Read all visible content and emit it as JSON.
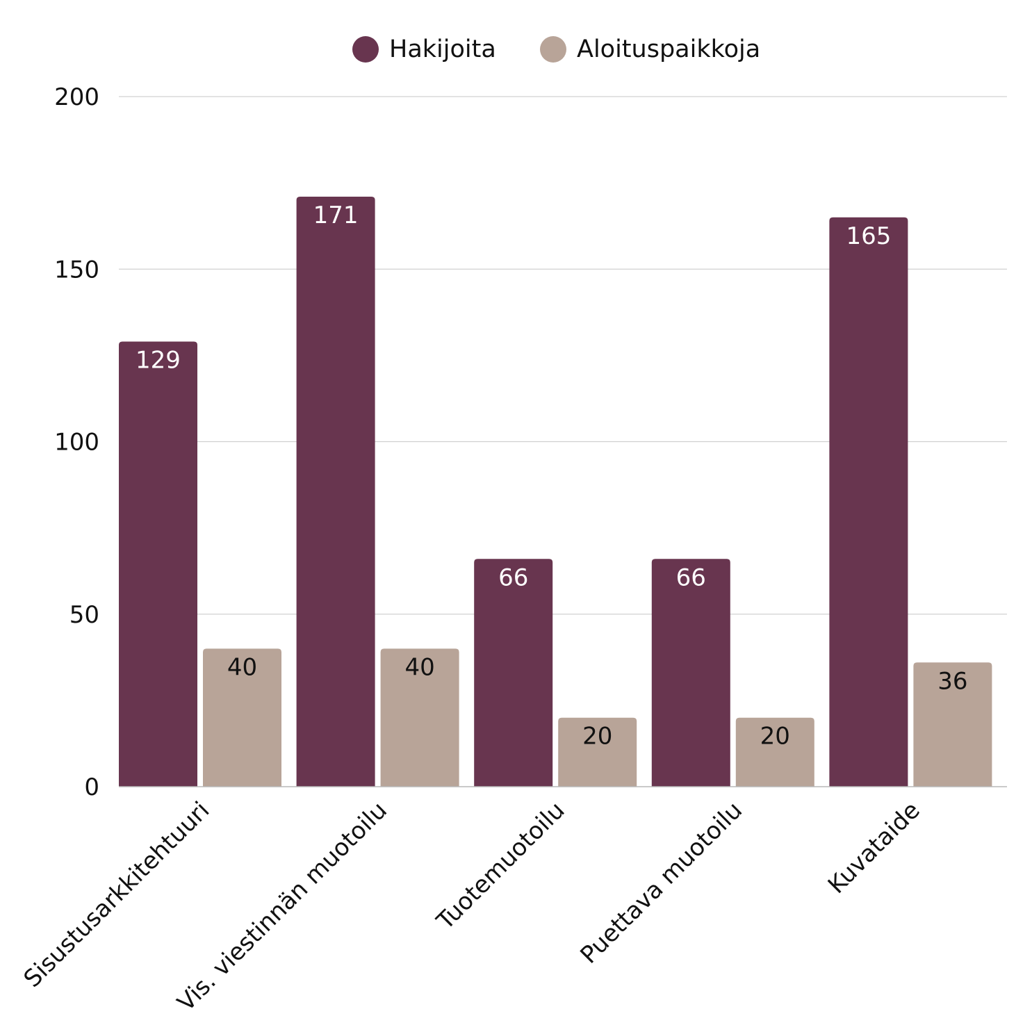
{
  "chart_data": {
    "type": "bar",
    "categories": [
      "Sisustusarkkitehtuuri",
      "Vis. viestinnän muotoilu",
      "Tuotemuotoilu",
      "Puettava muotoilu",
      "Kuvataide"
    ],
    "series": [
      {
        "name": "Hakijoita",
        "values": [
          129,
          171,
          66,
          66,
          165
        ],
        "color": "#68354f",
        "label_color": "#ffffff"
      },
      {
        "name": "Aloituspaikkoja",
        "values": [
          40,
          40,
          20,
          20,
          36
        ],
        "color": "#b8a498",
        "label_color": "#111111"
      }
    ],
    "ylim": [
      0,
      200
    ],
    "yticks": [
      0,
      50,
      100,
      150,
      200
    ],
    "grid": true,
    "legend": "top-center"
  }
}
